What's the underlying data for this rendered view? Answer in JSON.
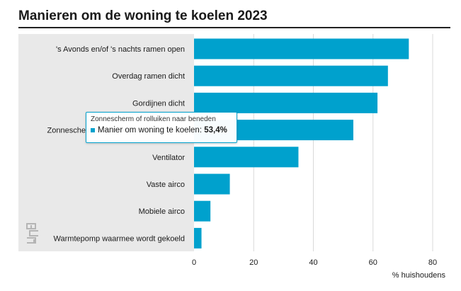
{
  "title": "Manieren om de woning te koelen 2023",
  "chart_data": {
    "type": "bar",
    "orientation": "horizontal",
    "categories": [
      "'s Avonds en/of 's nachts ramen open",
      "Overdag ramen dicht",
      "Gordijnen dicht",
      "Zonnescherm of rolluiken naar beneden",
      "Ventilator",
      "Vaste airco",
      "Mobiele airco",
      "Warmtepomp waarmee wordt gekoeld"
    ],
    "series": [
      {
        "name": "Manier om woning te koelen",
        "values": [
          72,
          65,
          61.5,
          53.4,
          35,
          12,
          5.5,
          2.5
        ]
      }
    ],
    "xlabel": "% huishoudens",
    "xlim": [
      0,
      80
    ],
    "xticks": [
      "0",
      "20",
      "40",
      "60",
      "80"
    ],
    "grid": true,
    "bar_color": "#00a1cd",
    "tooltip": {
      "title": "Zonnescherm of rolluiken naar beneden",
      "series_label": "Manier om woning te koelen:",
      "value_text": "53,4%"
    }
  },
  "logo": {
    "icon": "cbs-logo-icon"
  }
}
